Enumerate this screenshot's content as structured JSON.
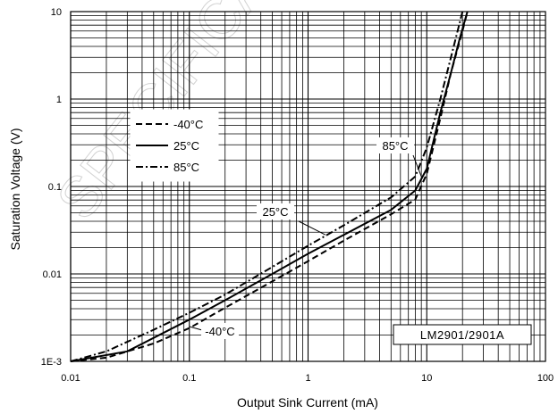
{
  "chart_data": {
    "type": "line",
    "xlabel": "Output Sink Current (mA)",
    "ylabel": "Saturation Voltage (V)",
    "x_scale": "log",
    "y_scale": "log",
    "xlim": [
      0.01,
      100
    ],
    "ylim": [
      0.001,
      10
    ],
    "x_ticks": [
      {
        "value": 0.01,
        "label": "0.01"
      },
      {
        "value": 0.1,
        "label": "0.1"
      },
      {
        "value": 1,
        "label": "1"
      },
      {
        "value": 10,
        "label": "10"
      },
      {
        "value": 100,
        "label": "100"
      }
    ],
    "y_ticks": [
      {
        "value": 0.001,
        "label": "1E-3"
      },
      {
        "value": 0.01,
        "label": "0.01"
      },
      {
        "value": 0.1,
        "label": "0.1"
      },
      {
        "value": 1,
        "label": "1"
      },
      {
        "value": 10,
        "label": "10"
      }
    ],
    "grid": true,
    "legend_position": "upper-left",
    "part_label": "LM2901/2901A",
    "series": [
      {
        "name": "-40°C",
        "style": "dashed",
        "x": [
          0.01,
          0.02,
          0.05,
          0.1,
          0.2,
          0.5,
          1,
          2,
          5,
          8,
          10,
          13,
          16,
          20,
          22
        ],
        "y": [
          0.001,
          0.0011,
          0.0016,
          0.0024,
          0.0041,
          0.0082,
          0.014,
          0.024,
          0.048,
          0.071,
          0.14,
          0.6,
          2.0,
          6.0,
          10
        ]
      },
      {
        "name": "25°C",
        "style": "solid",
        "x": [
          0.01,
          0.03,
          0.1,
          0.2,
          0.5,
          1,
          2,
          5,
          8,
          10,
          13,
          16,
          19,
          21,
          22
        ],
        "y": [
          0.001,
          0.0013,
          0.003,
          0.005,
          0.01,
          0.017,
          0.028,
          0.054,
          0.09,
          0.16,
          0.7,
          2.0,
          5.0,
          8.0,
          10
        ]
      },
      {
        "name": "85°C",
        "style": "dashdot",
        "x": [
          0.01,
          0.02,
          0.05,
          0.1,
          0.2,
          0.5,
          1,
          2,
          5,
          8,
          10,
          13,
          16,
          20
        ],
        "y": [
          0.001,
          0.0013,
          0.0023,
          0.0036,
          0.0058,
          0.012,
          0.021,
          0.036,
          0.075,
          0.13,
          0.28,
          1.0,
          3.0,
          10
        ]
      }
    ],
    "annotations": [
      {
        "text": "85°C",
        "x": 9,
        "y": 0.13
      },
      {
        "text": "25°C",
        "x": 1.4,
        "y": 0.028
      },
      {
        "text": "-40°C",
        "x": 0.1,
        "y": 0.0025
      }
    ]
  },
  "watermark": "SPECIFICATION",
  "colors": {
    "line": "#000000",
    "grid": "#000000",
    "background": "#ffffff",
    "watermark": "#c8c8c8"
  }
}
